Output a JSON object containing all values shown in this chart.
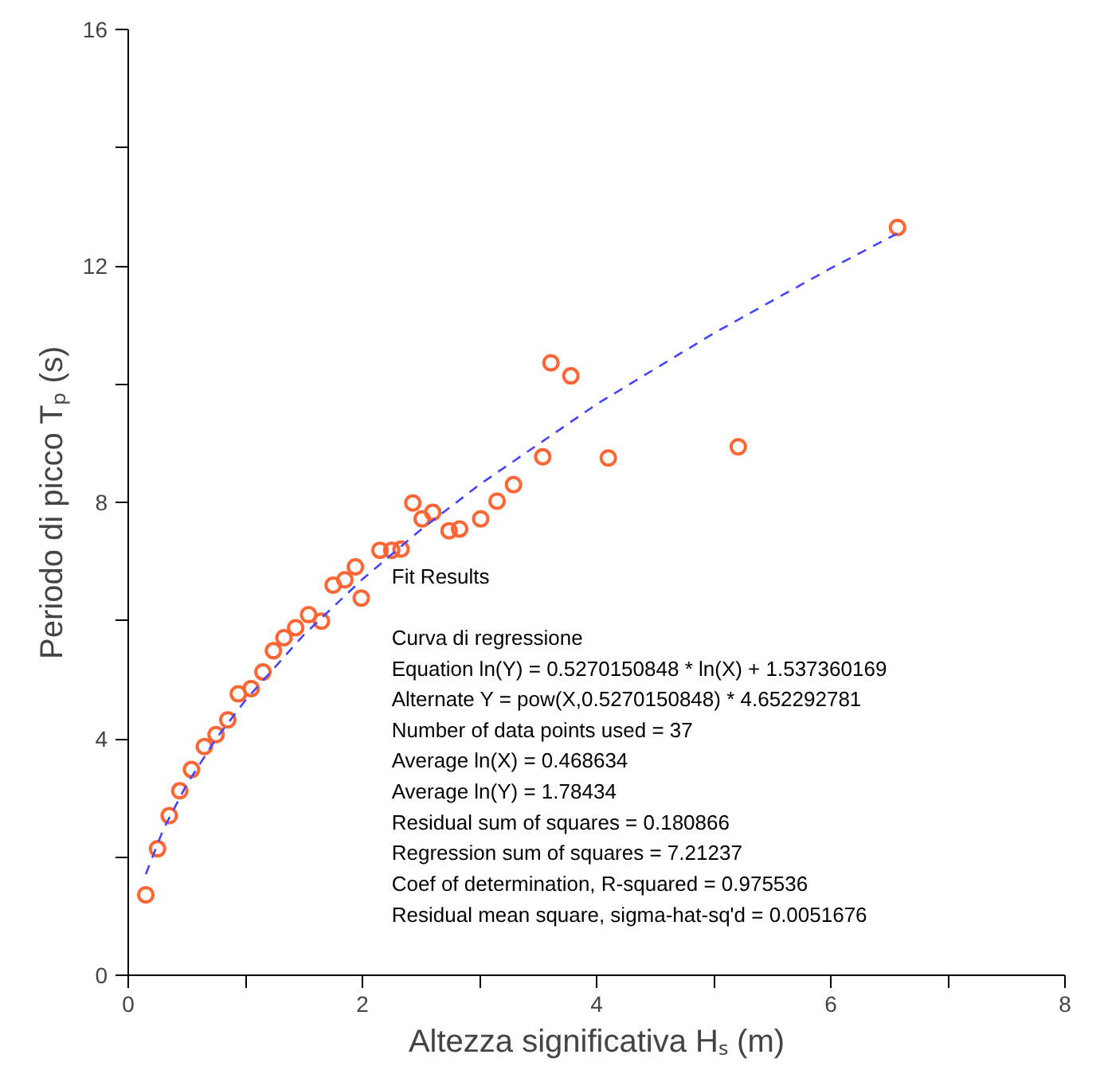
{
  "chart_data": {
    "type": "scatter",
    "xlabel": "Altezza significativa Hₛ (m)",
    "ylabel": "Periodo di picco Tₚ (s)",
    "xlim": [
      0,
      8
    ],
    "ylim": [
      0,
      16
    ],
    "xticks": [
      0,
      {
        "value": 1,
        "label": null
      },
      2,
      {
        "value": 3,
        "label": null
      },
      4,
      {
        "value": 5,
        "label": null
      },
      6,
      {
        "value": 7,
        "label": null
      },
      8
    ],
    "yticks": [
      0,
      {
        "value": 2,
        "label": null
      },
      4,
      {
        "value": 6,
        "label": null
      },
      8,
      {
        "value": 10,
        "label": null
      },
      12,
      {
        "value": 14,
        "label": null
      },
      16
    ],
    "grid": false,
    "series": [
      {
        "marker": "circle",
        "color": "#ff6633",
        "x": [
          0.15,
          0.25,
          0.35,
          0.44,
          0.54,
          0.65,
          0.75,
          0.85,
          0.94,
          1.05,
          1.15,
          1.24,
          1.33,
          1.43,
          1.54,
          1.65,
          1.75,
          1.85,
          1.94,
          1.99,
          2.15,
          2.25,
          2.33,
          2.43,
          2.51,
          2.6,
          2.74,
          2.83,
          3.01,
          3.15,
          3.29,
          3.54,
          3.61,
          3.78,
          4.1,
          5.21,
          6.57
        ],
        "values": [
          1.36,
          2.14,
          2.7,
          3.12,
          3.48,
          3.87,
          4.07,
          4.32,
          4.76,
          4.85,
          5.13,
          5.49,
          5.71,
          5.88,
          6.1,
          5.99,
          6.6,
          6.69,
          6.91,
          6.38,
          7.19,
          7.19,
          7.21,
          7.99,
          7.72,
          7.83,
          7.52,
          7.55,
          7.72,
          8.02,
          8.3,
          8.77,
          10.36,
          10.14,
          8.75,
          8.94,
          12.65
        ]
      },
      {
        "type": "line",
        "line_style": "dashed",
        "marker": "none",
        "color": "#4444ff",
        "x": [
          0.15,
          0.3,
          0.5,
          0.75,
          1,
          1.5,
          2,
          2.5,
          3,
          4,
          5,
          6,
          6.57
        ],
        "values": [
          1.71,
          2.47,
          3.23,
          4.0,
          4.65,
          5.76,
          6.7,
          7.54,
          8.3,
          9.66,
          10.86,
          11.96,
          12.55
        ]
      }
    ],
    "annotations": [
      "Fit Results",
      "Curva di regressione",
      "Equation ln(Y) = 0.5270150848 * ln(X) + 1.537360169",
      "Alternate Y = pow(X,0.5270150848) * 4.652292781",
      "Number of data points used = 37",
      "Average ln(X) = 0.468634",
      "Average ln(Y) = 1.78434",
      "Residual sum of squares = 0.180866",
      "Regression sum of squares = 7.21237",
      "Coef of determination, R-squared = 0.975536",
      "Residual mean square, sigma-hat-sq'd = 0.0051676"
    ]
  }
}
